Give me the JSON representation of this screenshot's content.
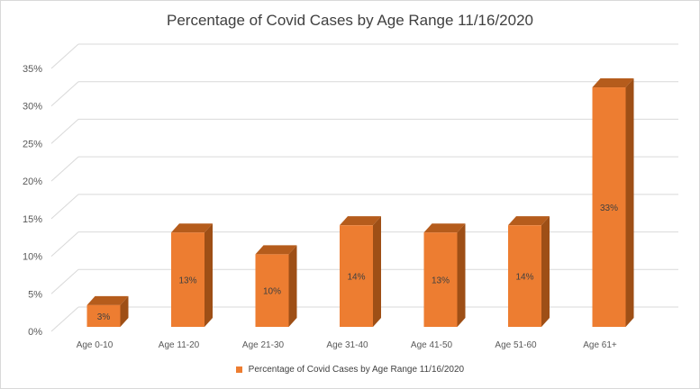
{
  "chart_data": {
    "type": "bar",
    "title": "Percentage of Covid Cases by Age Range 11/16/2020",
    "categories": [
      "Age 0-10",
      "Age 11-20",
      "Age 21-30",
      "Age 31-40",
      "Age 41-50",
      "Age 51-60",
      "Age 61+"
    ],
    "series": [
      {
        "name": "Percentage of Covid Cases by Age Range 11/16/2020",
        "values": [
          3,
          13,
          10,
          14,
          13,
          14,
          33
        ],
        "data_labels": [
          "3%",
          "13%",
          "10%",
          "14%",
          "13%",
          "14%",
          "33%"
        ],
        "color": "#ed7d31"
      }
    ],
    "yticks": [
      "0%",
      "5%",
      "10%",
      "15%",
      "20%",
      "25%",
      "30%",
      "35%"
    ],
    "ylim": [
      0,
      35
    ],
    "xlabel": "",
    "ylabel": "",
    "grid": true,
    "style": "3d-column",
    "legend_position": "bottom"
  }
}
